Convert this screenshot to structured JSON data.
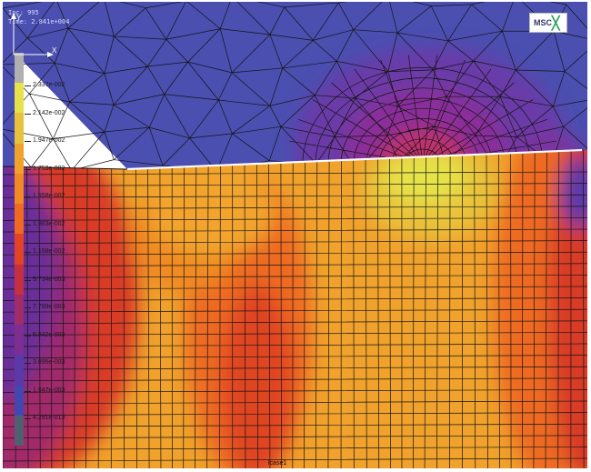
{
  "header": {
    "inc_text": "Inc: 995",
    "time_text": "Time: 2.841e+004",
    "logo_text": "MSC"
  },
  "legend": {
    "labels": [
      "2.337e-002",
      "2.142e-002",
      "1.947e-002",
      "1.753e-002",
      "1.558e-002",
      "1.363e-002",
      "1.168e-002",
      "9.734e-003",
      "7.789e-003",
      "5.842e-003",
      "3.895e-003",
      "1.947e-003",
      "4.291e-013"
    ],
    "colors": [
      "#b0b0b0",
      "#e6e24a",
      "#e8c23a",
      "#f0a22c",
      "#f08a24",
      "#ee6a20",
      "#e04424",
      "#c43040",
      "#a02c6a",
      "#7e2e90",
      "#5a3aa8",
      "#4248b0",
      "#4f6070"
    ]
  },
  "footer": {
    "case_label": "lcase1"
  },
  "axes": {
    "x_label": "X",
    "y_label": "Y"
  },
  "colors": {
    "background": "#4a4fb0",
    "mesh_line": "#141414"
  }
}
